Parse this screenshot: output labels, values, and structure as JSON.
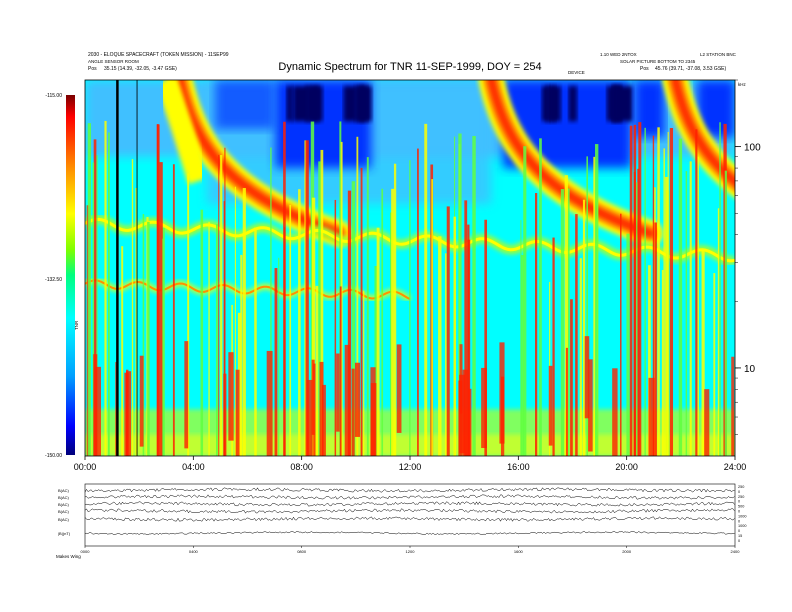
{
  "header": {
    "title": "Dynamic Spectrum for TNR 11-SEP-1999, DOY = 254",
    "left_line1": "2030 - ELOQUE SPACECRAFT (TOKEN MISSION) - 11SEP99",
    "left_line2": "ANGLE SENSOR ROOM",
    "left_line3_label": "Pos",
    "left_line3_value": "35.15 (14.39, -32.05, -3.47 GSE)",
    "right_line1": "1.10 WED 2NTOX",
    "right_line1b": "L2 STATION BNC",
    "right_line2": "SOLAR PICTURE BOTTOM TO 2345",
    "right_line3_label": "Pos",
    "right_line3_value": "45.76 (39.71, -37.08, 3.53 GSE)",
    "marker_label": "DEVICE",
    "khz_label": "kHz"
  },
  "colorbar": {
    "ticks": [
      "-115.00",
      "-132.50",
      "-150.00"
    ],
    "label": "TNR",
    "stops": [
      "#7a0000",
      "#ff0000",
      "#ff8c00",
      "#ffff00",
      "#7fff00",
      "#00ff7f",
      "#00ffff",
      "#00a0ff",
      "#0000ff",
      "#00007a"
    ]
  },
  "chart_data": {
    "type": "heatmap",
    "title": "Dynamic Spectrum for TNR 11-SEP-1999, DOY = 254",
    "x_ticks": [
      "00:00",
      "04:00",
      "08:00",
      "12:00",
      "16:00",
      "20:00",
      "24:00"
    ],
    "x_range_hours": [
      0,
      24
    ],
    "y_scale": "log",
    "y_ticks": [
      100,
      10
    ],
    "y_unit": "kHz",
    "y_range_khz": [
      4,
      200
    ],
    "color_range_db": [
      -150,
      -115
    ],
    "features": {
      "type_iii_bursts_hours": [
        3.5,
        15.0,
        21.8
      ],
      "dark_blue_bands_hours": [
        [
          7.4,
          10.2
        ],
        [
          15.8,
          19.8
        ]
      ],
      "plasma_line_khz_start": 45,
      "plasma_line_khz_end": 32,
      "lower_band_khz": 20,
      "vertical_marker_hour": 1.15
    }
  },
  "bottom_panel": {
    "row_labels": [
      "B(AC)",
      "B(AC)",
      "B(AC)",
      "B(AC)",
      "B(AC)",
      "|B|(nT)"
    ],
    "right_ticks": [
      "250",
      "0",
      "250",
      "0",
      "500",
      "0",
      "1000",
      "0",
      "1000",
      "0",
      "15",
      "0"
    ],
    "x_ticks": [
      "0000",
      "0400",
      "0800",
      "1200",
      "1600",
      "2000",
      "2400"
    ],
    "footer": "Makes Wing"
  }
}
